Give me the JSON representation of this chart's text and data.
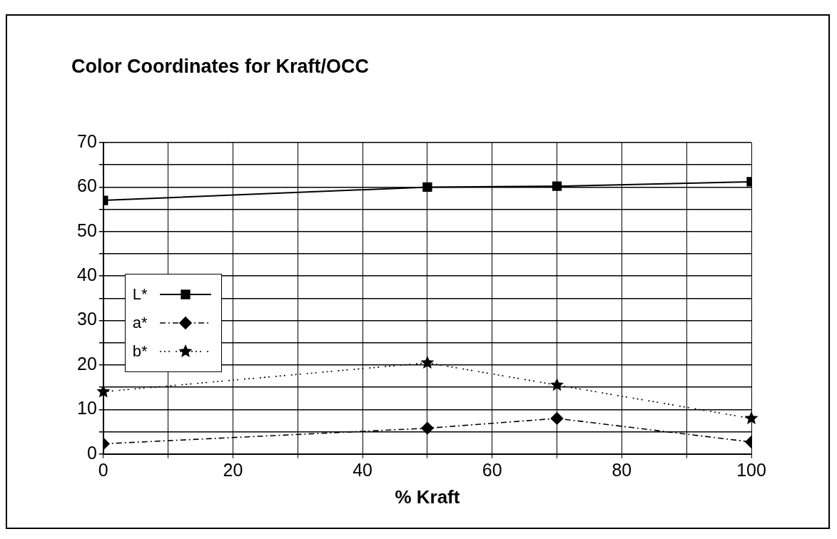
{
  "chart_data": {
    "type": "line",
    "title": "Color Coordinates for Kraft/OCC",
    "xlabel": "% Kraft",
    "x": [
      0,
      50,
      70,
      100
    ],
    "series": [
      {
        "name": "L*",
        "color": "#000000",
        "values": [
          57,
          60,
          60.2,
          61.2
        ],
        "marker": "square",
        "line_style": "solid"
      },
      {
        "name": "a*",
        "color": "#000000",
        "values": [
          2.3,
          5.8,
          8,
          2.7
        ],
        "marker": "diamond",
        "line_style": "dashed"
      },
      {
        "name": "b*",
        "color": "#000000",
        "values": [
          14,
          20.5,
          15.5,
          8
        ],
        "marker": "star",
        "line_style": "dotted"
      }
    ],
    "xlim": [
      0,
      100
    ],
    "xticks": [
      0,
      {
        "value": 10,
        "label": null
      },
      20,
      {
        "value": 30,
        "label": null
      },
      40,
      {
        "value": 50,
        "label": null
      },
      60,
      {
        "value": 70,
        "label": null
      },
      80,
      {
        "value": 90,
        "label": null
      },
      100
    ],
    "ylim": [
      0,
      70
    ],
    "yticks": [
      0,
      {
        "value": 5,
        "label": null
      },
      10,
      {
        "value": 15,
        "label": null
      },
      20,
      {
        "value": 25,
        "label": null
      },
      30,
      {
        "value": 35,
        "label": null
      },
      40,
      {
        "value": 45,
        "label": null
      },
      50,
      {
        "value": 55,
        "label": null
      },
      60,
      {
        "value": 65,
        "label": null
      },
      70
    ],
    "grid": true,
    "legend": "left"
  }
}
